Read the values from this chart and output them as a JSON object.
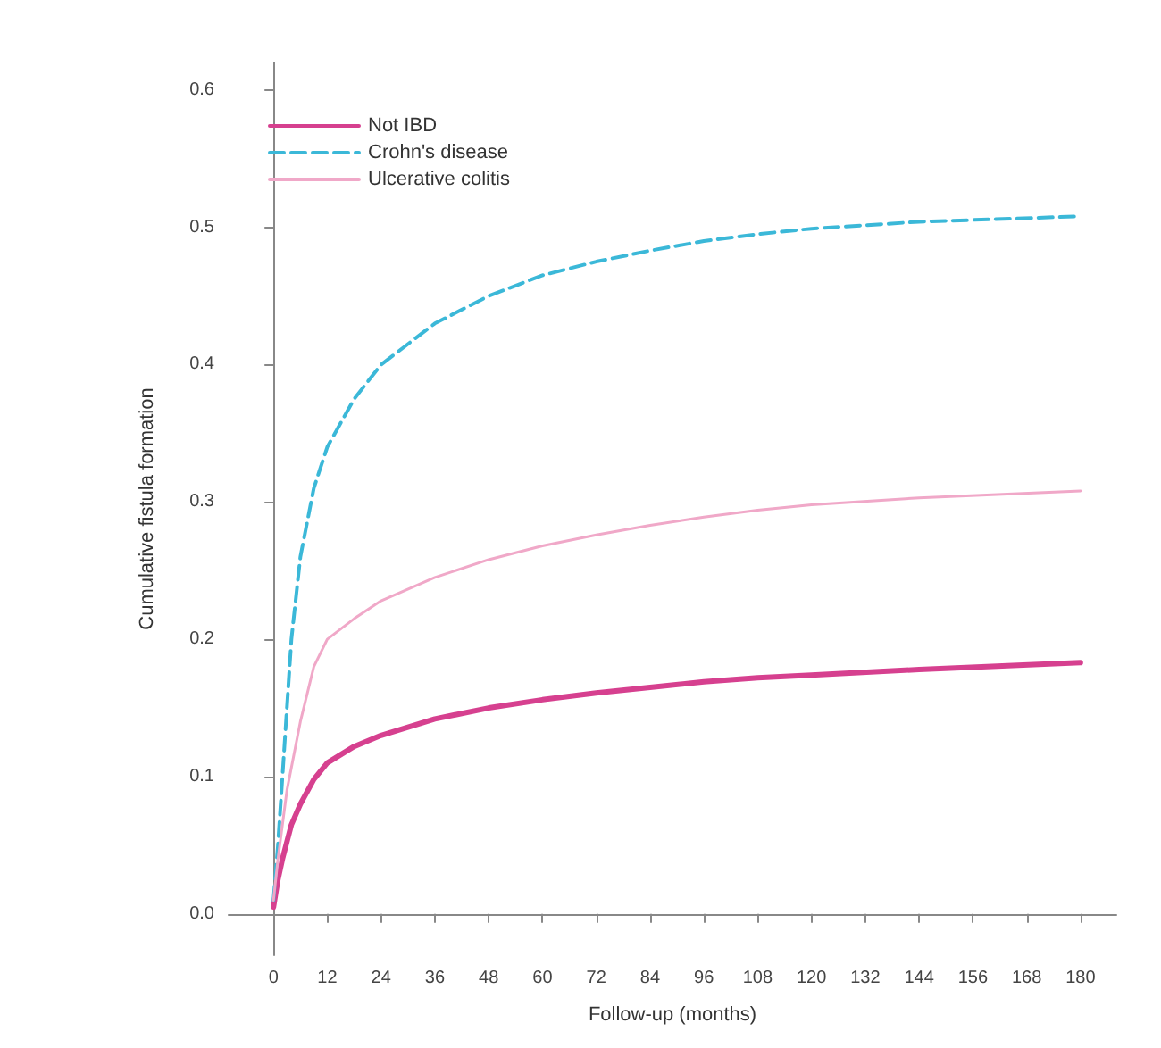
{
  "chart_data": {
    "type": "line",
    "xlabel": "Follow-up (months)",
    "ylabel": "Cumulative fistula formation",
    "xlim": [
      -10,
      188
    ],
    "ylim": [
      -0.03,
      0.62
    ],
    "xticks": [
      0,
      12,
      24,
      36,
      48,
      60,
      72,
      84,
      96,
      108,
      120,
      132,
      144,
      156,
      168,
      180
    ],
    "yticks": [
      {
        "value": 0,
        "label": "0.0"
      },
      {
        "value": 0.1,
        "label": "0.1"
      },
      {
        "value": 0.2,
        "label": "0.2"
      },
      {
        "value": 0.3,
        "label": "0.3"
      },
      {
        "value": 0.4,
        "label": "0.4"
      },
      {
        "value": 0.5,
        "label": "0.5"
      },
      {
        "value": 0.6,
        "label": "0.6"
      }
    ],
    "legend": "top left",
    "marker": "none",
    "series": [
      {
        "name": "Not IBD",
        "color": "#d6408f",
        "line_style": "solid",
        "x": [
          0,
          1,
          2,
          4,
          6,
          9,
          12,
          18,
          24,
          36,
          48,
          60,
          72,
          84,
          96,
          108,
          120,
          144,
          180
        ],
        "values": [
          0.005,
          0.025,
          0.04,
          0.065,
          0.08,
          0.098,
          0.11,
          0.122,
          0.13,
          0.142,
          0.15,
          0.156,
          0.161,
          0.165,
          0.169,
          0.172,
          0.174,
          0.178,
          0.183
        ]
      },
      {
        "name": "Crohn's disease",
        "color": "#3bb8d8",
        "line_style": "dashed",
        "x": [
          0,
          1,
          2,
          3,
          4,
          6,
          9,
          12,
          18,
          24,
          36,
          48,
          60,
          72,
          84,
          96,
          108,
          120,
          144,
          180
        ],
        "values": [
          0.01,
          0.05,
          0.1,
          0.15,
          0.2,
          0.26,
          0.31,
          0.34,
          0.375,
          0.4,
          0.43,
          0.45,
          0.465,
          0.475,
          0.483,
          0.49,
          0.495,
          0.499,
          0.504,
          0.508
        ]
      },
      {
        "name": "Ulcerative colitis",
        "color": "#f0a8c8",
        "line_style": "solid",
        "x": [
          0,
          1,
          3,
          6,
          9,
          12,
          18,
          24,
          36,
          48,
          60,
          72,
          84,
          96,
          108,
          120,
          144,
          180
        ],
        "values": [
          0.01,
          0.04,
          0.09,
          0.14,
          0.18,
          0.2,
          0.215,
          0.228,
          0.245,
          0.258,
          0.268,
          0.276,
          0.283,
          0.289,
          0.294,
          0.298,
          0.303,
          0.308
        ]
      }
    ]
  }
}
